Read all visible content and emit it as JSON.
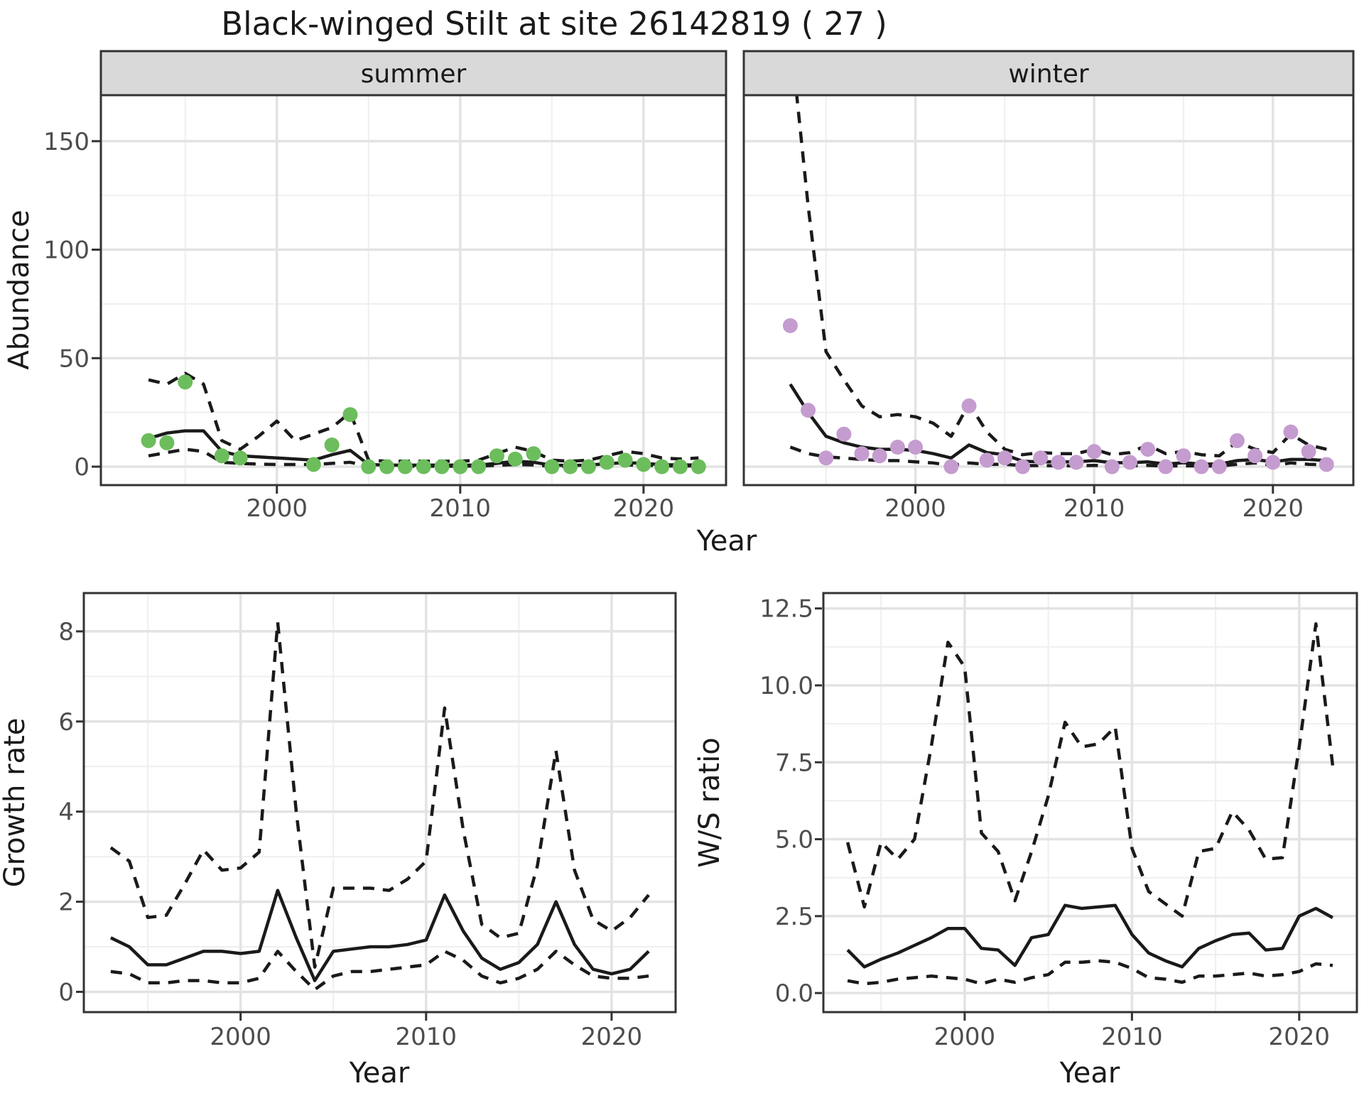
{
  "title": "Black-winged Stilt at site 26142819 ( 27 )",
  "colors": {
    "summer_dot": "#6cbd5c",
    "winter_dot": "#c59ccf",
    "line": "#1a1a1a",
    "strip_bg": "#d9d9d9",
    "strip_border": "#333333",
    "panel_border": "#333333",
    "grid_major": "#e3e3e3",
    "grid_minor": "#efefef",
    "tick_label": "#4d4d4d",
    "axis_title": "#1a1a1a"
  },
  "chart_data": [
    {
      "type": "line",
      "facet_label": "summer",
      "ylabel": "Abundance",
      "xlabel": "Year",
      "xlim": [
        1990.4,
        2024.5
      ],
      "ylim": [
        -8.5,
        171.2
      ],
      "xticks": [
        2000,
        2010,
        2020
      ],
      "yticks": [
        0,
        50,
        100,
        150
      ],
      "ytick_labels": [
        "0",
        "50",
        "100",
        "150"
      ],
      "x": [
        1993,
        1994,
        1995,
        1996,
        1997,
        1998,
        1999,
        2000,
        2001,
        2002,
        2003,
        2004,
        2005,
        2006,
        2007,
        2008,
        2009,
        2010,
        2011,
        2012,
        2013,
        2014,
        2015,
        2016,
        2017,
        2018,
        2019,
        2020,
        2021,
        2022,
        2023
      ],
      "series": [
        {
          "name": "fit",
          "style": "solid",
          "values": [
            13,
            15.5,
            16.5,
            16.5,
            7,
            5,
            4.5,
            4,
            3.5,
            3,
            5.5,
            7.5,
            1,
            0.7,
            0.7,
            0.7,
            0.7,
            0.7,
            0.7,
            1.5,
            2.5,
            2,
            0.7,
            0.6,
            0.7,
            1.4,
            1.8,
            1.5,
            0.9,
            0.8,
            0.8
          ]
        },
        {
          "name": "upper_ci",
          "style": "dashed",
          "values": [
            40,
            38,
            43,
            38,
            12,
            8,
            14,
            21,
            12,
            15,
            18,
            25,
            3,
            2.5,
            2.5,
            2.5,
            2.5,
            2.5,
            3,
            6,
            9,
            7,
            3,
            2.5,
            3,
            5,
            7,
            6,
            4,
            3.5,
            4
          ]
        },
        {
          "name": "lower_ci",
          "style": "dashed",
          "values": [
            5,
            6.5,
            8,
            7,
            2,
            1.5,
            1.2,
            1,
            1,
            1,
            1.5,
            2,
            0.3,
            0.2,
            0.2,
            0.2,
            0.2,
            0.2,
            0.3,
            0.6,
            1,
            0.8,
            0.2,
            0.2,
            0.2,
            0.5,
            0.8,
            0.7,
            0.4,
            0.3,
            0.4
          ]
        }
      ],
      "points": {
        "name": "observed-count",
        "color_key": "summer_dot",
        "data": [
          [
            1993,
            12
          ],
          [
            1994,
            11
          ],
          [
            1995,
            39
          ],
          [
            1997,
            5
          ],
          [
            1998,
            4
          ],
          [
            2002,
            1
          ],
          [
            2003,
            10
          ],
          [
            2004,
            24
          ],
          [
            2005,
            0
          ],
          [
            2006,
            0
          ],
          [
            2007,
            0
          ],
          [
            2008,
            0
          ],
          [
            2009,
            0
          ],
          [
            2010,
            0
          ],
          [
            2011,
            0
          ],
          [
            2012,
            5
          ],
          [
            2013,
            3.5
          ],
          [
            2014,
            6
          ],
          [
            2015,
            0
          ],
          [
            2016,
            0
          ],
          [
            2017,
            0
          ],
          [
            2018,
            2
          ],
          [
            2019,
            3
          ],
          [
            2020,
            1
          ],
          [
            2021,
            0
          ],
          [
            2022,
            0
          ],
          [
            2023,
            0
          ]
        ]
      }
    },
    {
      "type": "line",
      "facet_label": "winter",
      "ylabel": "Abundance",
      "xlabel": "Year",
      "xlim": [
        1990.4,
        2024.5
      ],
      "ylim": [
        -8.5,
        171.2
      ],
      "xticks": [
        2000,
        2010,
        2020
      ],
      "yticks": [
        0,
        50,
        100,
        150
      ],
      "ytick_labels": [
        "0",
        "50",
        "100",
        "150"
      ],
      "x": [
        1993,
        1994,
        1995,
        1996,
        1997,
        1998,
        1999,
        2000,
        2001,
        2002,
        2003,
        2004,
        2005,
        2006,
        2007,
        2008,
        2009,
        2010,
        2011,
        2012,
        2013,
        2014,
        2015,
        2016,
        2017,
        2018,
        2019,
        2020,
        2021,
        2022,
        2023
      ],
      "series": [
        {
          "name": "fit",
          "style": "solid",
          "values": [
            38,
            25,
            14,
            11,
            9,
            8,
            8,
            7.5,
            6,
            4,
            10,
            6.5,
            5.5,
            2.5,
            2.2,
            2.2,
            2.2,
            2.8,
            1.8,
            1.8,
            2.2,
            1.2,
            1.8,
            1.2,
            1.2,
            2.8,
            3.3,
            2.2,
            3.3,
            3.3,
            2.8
          ]
        },
        {
          "name": "upper_ci",
          "style": "dashed",
          "values": [
            200,
            120,
            53,
            40,
            28,
            23,
            24,
            23,
            20,
            14,
            29,
            16,
            8,
            5.5,
            6.5,
            6,
            6,
            8,
            5.5,
            6.5,
            10,
            6,
            7,
            5.5,
            5,
            11.5,
            8,
            6.5,
            15,
            10,
            8
          ]
        },
        {
          "name": "lower_ci",
          "style": "dashed",
          "values": [
            9,
            6,
            4.5,
            4,
            3.3,
            2.8,
            2.8,
            2.2,
            1.7,
            0.6,
            1.7,
            1.1,
            1.1,
            0.5,
            0.5,
            0.4,
            0.4,
            0.6,
            0.4,
            0.4,
            0.6,
            0.3,
            0.4,
            0.3,
            0.3,
            1.1,
            1.7,
            0.6,
            1.7,
            1.1,
            0.9
          ]
        }
      ],
      "points": {
        "name": "observed-count",
        "color_key": "winter_dot",
        "data": [
          [
            1993,
            65
          ],
          [
            1994,
            26
          ],
          [
            1995,
            4
          ],
          [
            1996,
            15
          ],
          [
            1997,
            6
          ],
          [
            1998,
            5
          ],
          [
            1999,
            9
          ],
          [
            2000,
            9
          ],
          [
            2002,
            0
          ],
          [
            2003,
            28
          ],
          [
            2004,
            3
          ],
          [
            2005,
            4
          ],
          [
            2006,
            0
          ],
          [
            2007,
            4
          ],
          [
            2008,
            2
          ],
          [
            2009,
            2
          ],
          [
            2010,
            7
          ],
          [
            2011,
            0
          ],
          [
            2012,
            2
          ],
          [
            2013,
            8
          ],
          [
            2014,
            0
          ],
          [
            2015,
            5
          ],
          [
            2016,
            0
          ],
          [
            2017,
            0
          ],
          [
            2018,
            12
          ],
          [
            2019,
            5
          ],
          [
            2020,
            2
          ],
          [
            2021,
            16
          ],
          [
            2022,
            7
          ],
          [
            2023,
            1
          ]
        ]
      }
    },
    {
      "type": "line",
      "facet_label": null,
      "ylabel": "Growth rate",
      "xlabel": "Year",
      "xlim": [
        1991.55,
        2023.45
      ],
      "ylim": [
        -0.45,
        8.85
      ],
      "xticks": [
        2000,
        2010,
        2020
      ],
      "yticks": [
        0,
        2,
        4,
        6,
        8
      ],
      "ytick_labels": [
        "0",
        "2",
        "4",
        "6",
        "8"
      ],
      "x": [
        1993,
        1994,
        1995,
        1996,
        1997,
        1998,
        1999,
        2000,
        2001,
        2002,
        2003,
        2004,
        2005,
        2006,
        2007,
        2008,
        2009,
        2010,
        2011,
        2012,
        2013,
        2014,
        2015,
        2016,
        2017,
        2018,
        2019,
        2020,
        2021,
        2022
      ],
      "series": [
        {
          "name": "fit",
          "style": "solid",
          "values": [
            1.2,
            1.0,
            0.6,
            0.6,
            0.75,
            0.9,
            0.9,
            0.85,
            0.9,
            2.25,
            1.2,
            0.25,
            0.9,
            0.95,
            1.0,
            1.0,
            1.05,
            1.15,
            2.15,
            1.35,
            0.75,
            0.5,
            0.65,
            1.05,
            2.0,
            1.05,
            0.5,
            0.4,
            0.5,
            0.9
          ]
        },
        {
          "name": "upper_ci",
          "style": "dashed",
          "values": [
            3.2,
            2.9,
            1.65,
            1.7,
            2.4,
            3.15,
            2.7,
            2.75,
            3.1,
            8.2,
            4.0,
            0.55,
            2.3,
            2.3,
            2.3,
            2.25,
            2.5,
            2.9,
            6.3,
            3.6,
            1.5,
            1.2,
            1.3,
            2.8,
            5.35,
            2.7,
            1.6,
            1.35,
            1.65,
            2.15
          ]
        },
        {
          "name": "lower_ci",
          "style": "dashed",
          "values": [
            0.45,
            0.4,
            0.2,
            0.2,
            0.25,
            0.25,
            0.2,
            0.2,
            0.3,
            0.9,
            0.45,
            0.05,
            0.35,
            0.45,
            0.45,
            0.5,
            0.55,
            0.6,
            0.9,
            0.7,
            0.35,
            0.2,
            0.3,
            0.5,
            0.9,
            0.6,
            0.35,
            0.3,
            0.3,
            0.35
          ]
        }
      ],
      "points": null
    },
    {
      "type": "line",
      "facet_label": null,
      "ylabel": "W/S ratio",
      "xlabel": "Year",
      "xlim": [
        1991.55,
        2023.45
      ],
      "ylim": [
        -0.62,
        13.0
      ],
      "xticks": [
        2000,
        2010,
        2020
      ],
      "yticks": [
        0,
        2.5,
        5,
        7.5,
        10,
        12.5
      ],
      "ytick_labels": [
        "0.0",
        "2.5",
        "5.0",
        "7.5",
        "10.0",
        "12.5"
      ],
      "x": [
        1993,
        1994,
        1995,
        1996,
        1997,
        1998,
        1999,
        2000,
        2001,
        2002,
        2003,
        2004,
        2005,
        2006,
        2007,
        2008,
        2009,
        2010,
        2011,
        2012,
        2013,
        2014,
        2015,
        2016,
        2017,
        2018,
        2019,
        2020,
        2021,
        2022
      ],
      "series": [
        {
          "name": "fit",
          "style": "solid",
          "values": [
            1.4,
            0.85,
            1.1,
            1.3,
            1.55,
            1.8,
            2.1,
            2.1,
            1.45,
            1.4,
            0.9,
            1.8,
            1.9,
            2.85,
            2.75,
            2.8,
            2.85,
            1.9,
            1.3,
            1.05,
            0.85,
            1.45,
            1.7,
            1.9,
            1.95,
            1.4,
            1.45,
            2.5,
            2.75,
            2.45
          ]
        },
        {
          "name": "upper_ci",
          "style": "dashed",
          "values": [
            4.9,
            2.8,
            4.9,
            4.35,
            5.0,
            8.0,
            11.4,
            10.6,
            5.2,
            4.6,
            3.0,
            4.6,
            6.4,
            8.8,
            8.0,
            8.1,
            8.65,
            4.7,
            3.3,
            2.9,
            2.5,
            4.6,
            4.7,
            5.9,
            5.3,
            4.35,
            4.4,
            8.0,
            12.0,
            7.4
          ]
        },
        {
          "name": "lower_ci",
          "style": "dashed",
          "values": [
            0.4,
            0.3,
            0.35,
            0.45,
            0.5,
            0.55,
            0.5,
            0.45,
            0.3,
            0.45,
            0.35,
            0.5,
            0.6,
            1.0,
            1.0,
            1.05,
            1.0,
            0.8,
            0.5,
            0.45,
            0.35,
            0.55,
            0.55,
            0.6,
            0.65,
            0.55,
            0.6,
            0.7,
            0.95,
            0.9
          ]
        }
      ],
      "points": null
    }
  ]
}
